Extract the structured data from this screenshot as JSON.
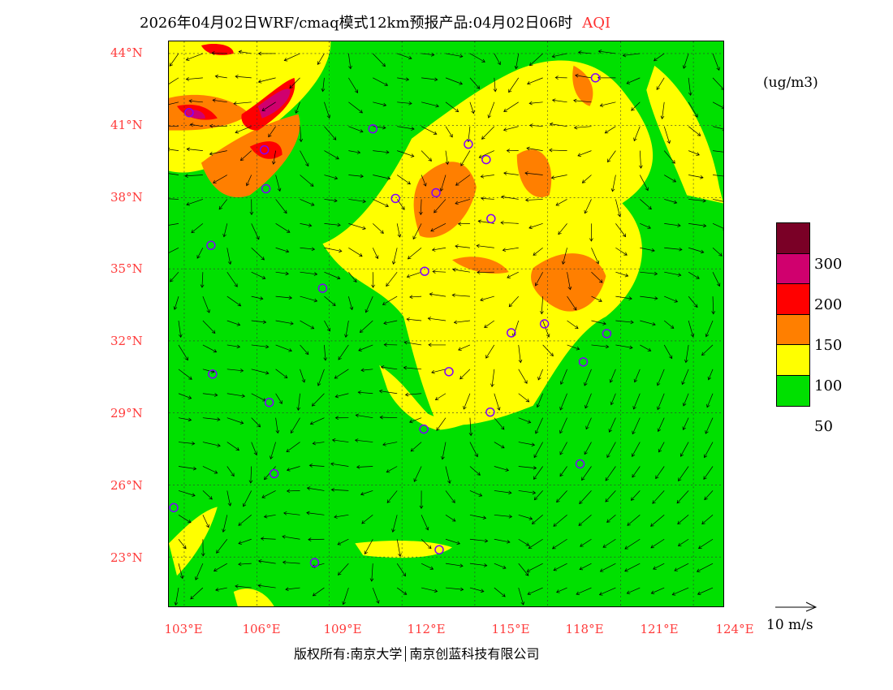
{
  "title": {
    "main": "2026年04月02日WRF/cmaq模式12km预报产品:04月02日06时",
    "variable": "AQI"
  },
  "axes": {
    "lat_labels": [
      "44°N",
      "41°N",
      "38°N",
      "35°N",
      "32°N",
      "29°N",
      "26°N",
      "23°N"
    ],
    "lon_labels": [
      "103°E",
      "106°E",
      "109°E",
      "112°E",
      "115°E",
      "118°E",
      "121°E",
      "124°E"
    ]
  },
  "legend": {
    "unit": "(ug/m3)",
    "colors": [
      "#7a0026",
      "#d0006e",
      "#ff0000",
      "#ff7f00",
      "#ffff00",
      "#00e000"
    ],
    "labels": [
      "300",
      "200",
      "150",
      "100",
      "50"
    ]
  },
  "wind_reference": {
    "label": "10 m/s"
  },
  "copyright": {
    "left": "版权所有:南京大学",
    "right": "南京创蓝科技有限公司"
  }
}
